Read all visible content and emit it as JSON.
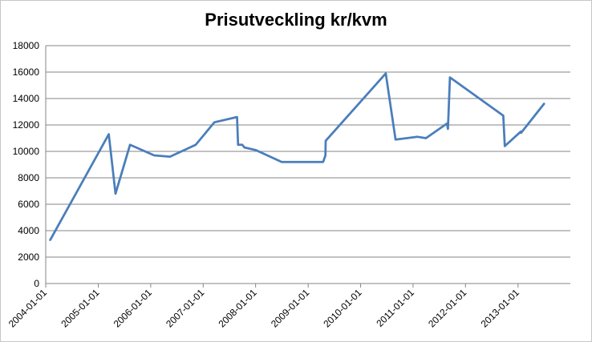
{
  "chart_data": {
    "type": "line",
    "title": "Prisutveckling kr/kvm",
    "xlabel": "",
    "ylabel": "",
    "ylim": [
      0,
      18000
    ],
    "yticks": [
      "0",
      "2000",
      "4000",
      "6000",
      "8000",
      "10000",
      "12000",
      "14000",
      "16000",
      "18000"
    ],
    "xlim": [
      "2004-01-01",
      "2013-12-31"
    ],
    "xticks": [
      "2004-01-01",
      "2005-01-01",
      "2006-01-01",
      "2007-01-01",
      "2008-01-01",
      "2009-01-01",
      "2010-01-01",
      "2011-01-01",
      "2012-01-01",
      "2013-01-01"
    ],
    "grid": true,
    "legend": "none",
    "line_color": "#4a7ebb",
    "series": [
      {
        "x": [
          "2004-02-01",
          "2005-03-15",
          "2005-05-01",
          "2005-08-10",
          "2006-01-25",
          "2006-05-15",
          "2006-11-10",
          "2007-03-20",
          "2007-08-25",
          "2007-09-01",
          "2007-09-30",
          "2007-10-15",
          "2008-01-01",
          "2008-07-01",
          "2009-04-15",
          "2009-05-01",
          "2009-05-03",
          "2010-06-25",
          "2010-09-01",
          "2011-02-01",
          "2011-04-01",
          "2011-08-25",
          "2011-09-01",
          "2011-09-15",
          "2012-09-20",
          "2012-10-01",
          "2013-01-20",
          "2013-01-22",
          "2013-07-01"
        ],
        "y": [
          3300,
          11300,
          6800,
          10500,
          9700,
          9600,
          10500,
          12200,
          12600,
          10500,
          10500,
          10300,
          10100,
          9200,
          9200,
          9700,
          10800,
          15900,
          10900,
          11100,
          11000,
          12100,
          11700,
          15600,
          12700,
          10400,
          11500,
          11400,
          13600
        ]
      }
    ]
  }
}
